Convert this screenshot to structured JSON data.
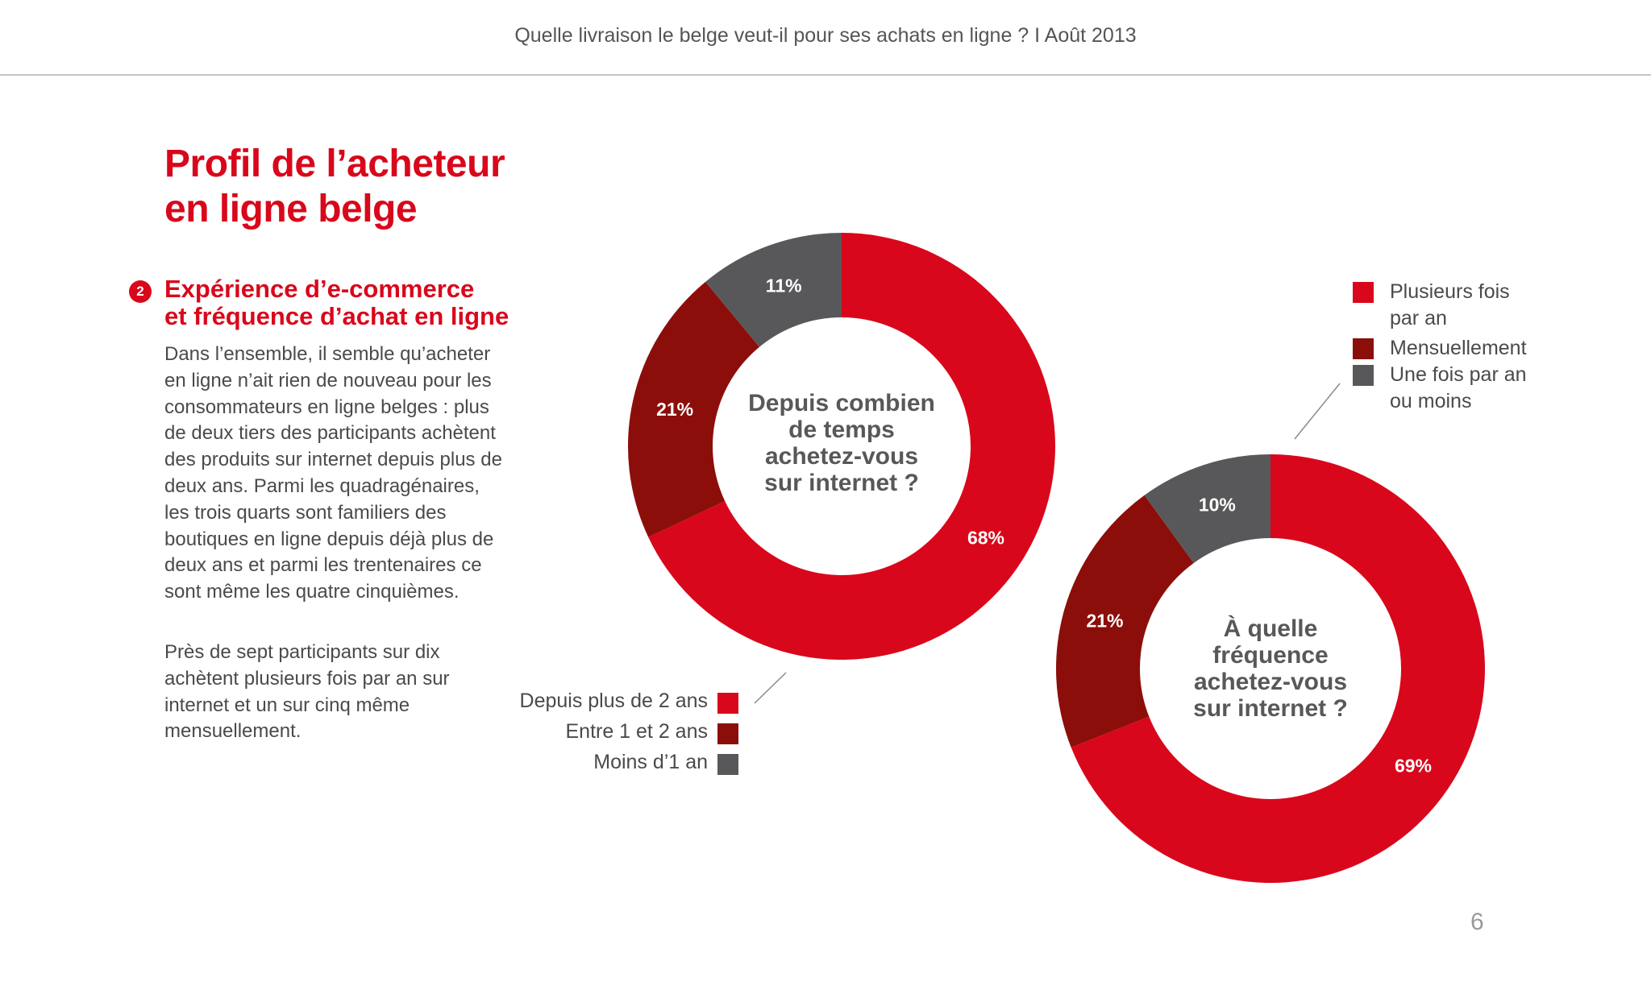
{
  "header": {
    "title": "Quelle livraison le belge veut-il pour ses achats en ligne ? I  Août 2013"
  },
  "page": {
    "title_line1": "Profil de l’acheteur",
    "title_line2": "en ligne belge",
    "number": "6"
  },
  "section": {
    "badge": "2",
    "heading_line1": "Expérience d’e-commerce",
    "heading_line2": "et fréquence d’achat en ligne",
    "paragraph1": "Dans l’ensemble, il semble qu’acheter en ligne n’ait rien de nouveau pour les consommateurs en ligne belges : plus de deux tiers des participants achètent des produits sur internet depuis plus de deux ans. Parmi les quadragénaires, les trois quarts sont familiers des boutiques en ligne depuis déjà plus de deux ans et parmi les trentenaires ce sont même les quatre cinquièmes.",
    "paragraph2": "Près de sept participants sur dix achètent plusieurs fois par an sur internet et un sur cinq même mensuellement."
  },
  "colors": {
    "red": "#d9071b",
    "dark_red": "#8c0e0a",
    "gray": "#58585a",
    "white": "#ffffff"
  },
  "chart_data": [
    {
      "type": "pie",
      "variant": "donut",
      "title_lines": [
        "Depuis combien",
        "de temps",
        "achetez-vous",
        "sur internet ?"
      ],
      "categories": [
        "Depuis plus de 2 ans",
        "Entre 1 et 2 ans",
        "Moins d’1 an"
      ],
      "values": [
        68,
        21,
        11
      ],
      "labels": [
        "68%",
        "21%",
        "11%"
      ],
      "colors": [
        "#d9071b",
        "#8c0e0a",
        "#58585a"
      ],
      "legend_position": "bottom-left"
    },
    {
      "type": "pie",
      "variant": "donut",
      "title_lines": [
        "À quelle",
        "fréquence",
        "achetez-vous",
        "sur internet ?"
      ],
      "categories": [
        "Plusieurs fois par an",
        "Mensuellement",
        "Une fois par an ou moins"
      ],
      "legend_lines": [
        [
          "Plusieurs fois",
          "par an"
        ],
        [
          "Mensuellement"
        ],
        [
          "Une fois par an",
          "ou moins"
        ]
      ],
      "values": [
        69,
        21,
        10
      ],
      "labels": [
        "69%",
        "21%",
        "10%"
      ],
      "colors": [
        "#d9071b",
        "#8c0e0a",
        "#58585a"
      ],
      "legend_position": "top-right"
    }
  ]
}
